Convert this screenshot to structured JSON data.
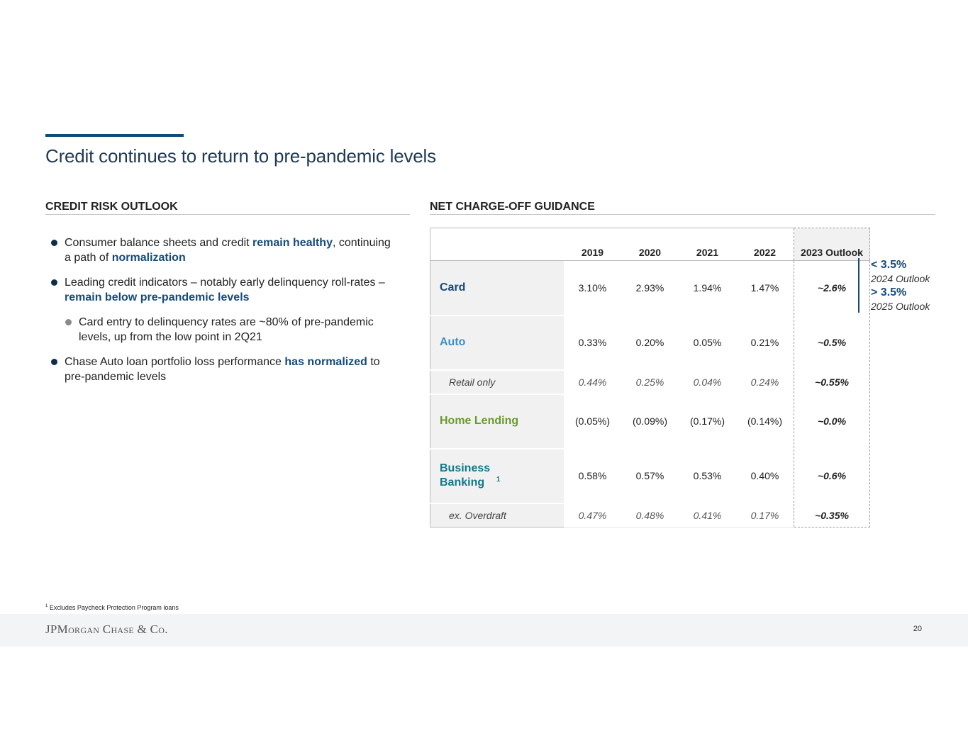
{
  "title": "Credit continues to return to pre-pandemic levels",
  "left_section": {
    "heading": "CREDIT RISK OUTLOOK",
    "bullets": [
      {
        "parts": [
          "Consumer balance sheets and credit ",
          "remain healthy",
          ", continuing a path of ",
          "normalization"
        ]
      },
      {
        "parts": [
          "Leading credit indicators – notably early delinquency roll-rates – ",
          "remain below pre-pandemic levels"
        ]
      },
      {
        "text": "Card entry to delinquency rates are ~80% of pre-pandemic levels, up from the low point in 2Q21"
      },
      {
        "parts": [
          "Chase Auto loan portfolio loss performance ",
          "has normalized",
          " to pre-pandemic levels"
        ]
      }
    ]
  },
  "right_section": {
    "heading": "NET CHARGE-OFF GUIDANCE",
    "columns": [
      "2019",
      "2020",
      "2021",
      "2022",
      "2023 Outlook"
    ],
    "rows": [
      {
        "label": "Card",
        "values": [
          "3.10%",
          "2.93%",
          "1.94%",
          "1.47%",
          "~2.6%"
        ]
      },
      {
        "label": "Auto",
        "values": [
          "0.33%",
          "0.20%",
          "0.05%",
          "0.21%",
          "~0.5%"
        ]
      },
      {
        "label": "Retail only",
        "values": [
          "0.44%",
          "0.25%",
          "0.04%",
          "0.24%",
          "~0.55%"
        ]
      },
      {
        "label": "Home Lending",
        "values": [
          "(0.05%)",
          "(0.09%)",
          "(0.17%)",
          "(0.14%)",
          "~0.0%"
        ]
      },
      {
        "label": "Business Banking",
        "label_sup": "1",
        "values": [
          "0.58%",
          "0.57%",
          "0.53%",
          "0.40%",
          "~0.6%"
        ]
      },
      {
        "label": "ex. Overdraft",
        "values": [
          "0.47%",
          "0.48%",
          "0.41%",
          "0.17%",
          "~0.35%"
        ]
      }
    ],
    "row_colors": {
      "card": "#164a7a",
      "auto": "#3a8fc4",
      "home_lending": "#6a9a2e",
      "business_banking": "#11798a"
    },
    "card_outlook": [
      {
        "value": "< 3.5%",
        "label": "2024 Outlook"
      },
      {
        "value": "> 3.5%",
        "label": "2025 Outlook"
      }
    ]
  },
  "footnote": {
    "marker": "1",
    "text": " Excludes Paycheck Protection Program loans"
  },
  "footer": {
    "logo": "JPMorgan Chase & Co.",
    "page_number": "20"
  }
}
